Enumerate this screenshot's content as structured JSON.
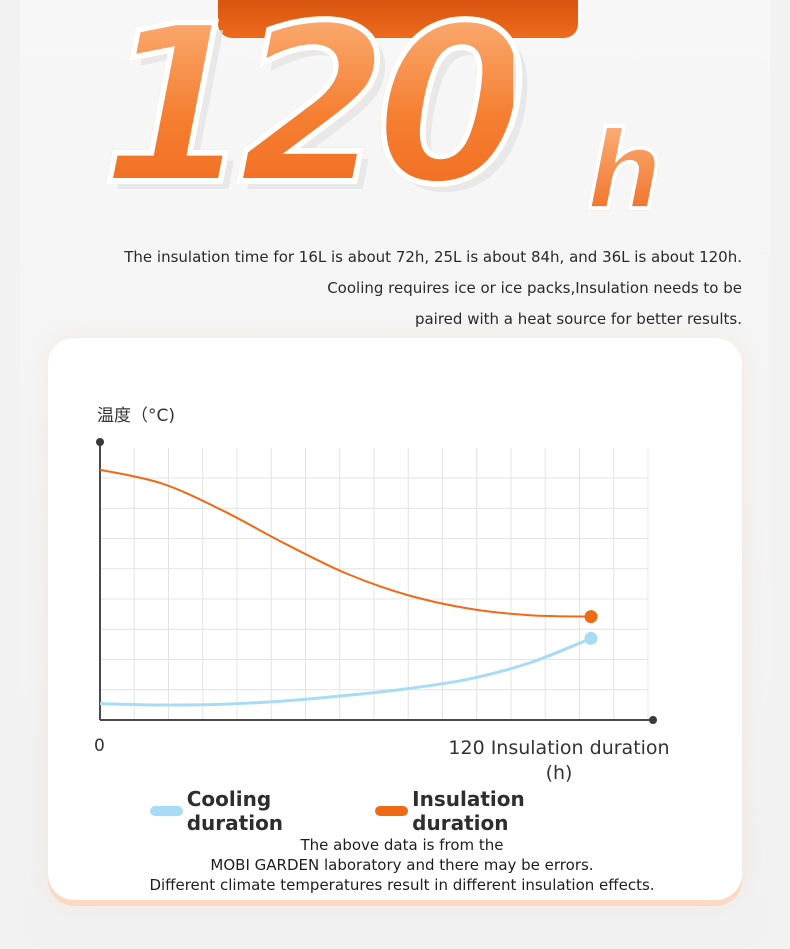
{
  "hero": {
    "number": "120",
    "unit": "h"
  },
  "description": {
    "line1": "The insulation time for 16L is about 72h, 25L is about 84h, and 36L is about 120h.",
    "line2": "Cooling requires ice or ice packs,Insulation needs to be",
    "line3": "paired with a heat source for better results."
  },
  "chart_data": {
    "type": "line",
    "ylabel": "温度（°C)",
    "xlabel": "Insulation duration (h)",
    "x_ticks": [
      "0",
      "120"
    ],
    "xlim": [
      0,
      120
    ],
    "grid": true,
    "legend_position": "bottom",
    "series": [
      {
        "name": "Cooling duration",
        "color": "#a8dcf6",
        "x": [
          0,
          15,
          30,
          45,
          60,
          75,
          90,
          105,
          120
        ],
        "y": [
          0.06,
          0.055,
          0.058,
          0.07,
          0.09,
          0.115,
          0.15,
          0.21,
          0.3
        ]
      },
      {
        "name": "Insulation duration",
        "color": "#ef6a17",
        "x": [
          0,
          15,
          30,
          45,
          60,
          75,
          90,
          105,
          120
        ],
        "y": [
          0.92,
          0.87,
          0.77,
          0.65,
          0.54,
          0.46,
          0.41,
          0.385,
          0.38
        ]
      }
    ]
  },
  "legend": {
    "cooling_label": "Cooling duration",
    "insulation_label": "Insulation duration",
    "cooling_color": "#a8dcf6",
    "insulation_color": "#ef6a17"
  },
  "note": {
    "line1": "The above data is from the",
    "line2": "MOBI GARDEN laboratory and there may be errors.",
    "line3": "Different climate temperatures result in different insulation effects."
  },
  "axis": {
    "x_zero": "0",
    "x_end_line1": "120 Insulation duration",
    "x_end_line2": "(h)"
  }
}
